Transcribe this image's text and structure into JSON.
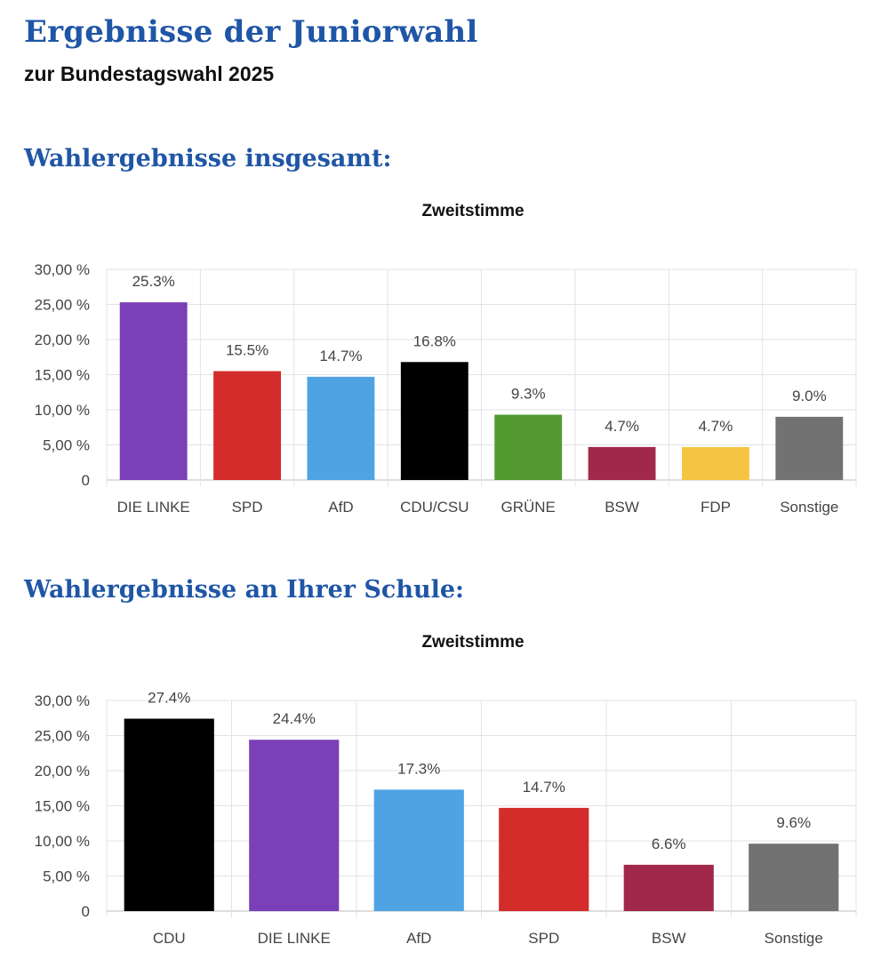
{
  "header": {
    "title": "Ergebnisse der Juniorwahl",
    "subtitle": "zur Bundestagswahl 2025"
  },
  "sections": [
    {
      "heading": "Wahlergebnisse insgesamt:"
    },
    {
      "heading": "Wahlergebnisse an Ihrer Schule:"
    }
  ],
  "chart_data": [
    {
      "type": "bar",
      "title": "Zweitstimme",
      "xlabel": "",
      "ylabel": "",
      "ylim": [
        0,
        30
      ],
      "yticks": [
        0,
        5,
        10,
        15,
        20,
        25,
        30
      ],
      "ytick_labels": [
        "0",
        "5,00 %",
        "10,00 %",
        "15,00 %",
        "20,00 %",
        "25,00 %",
        "30,00 %"
      ],
      "grid": true,
      "legend": "none",
      "categories": [
        "DIE LINKE",
        "SPD",
        "AfD",
        "CDU/CSU",
        "GRÜNE",
        "BSW",
        "FDP",
        "Sonstige"
      ],
      "values": [
        25.3,
        15.5,
        14.7,
        16.8,
        9.3,
        4.7,
        4.7,
        9.0
      ],
      "data_labels": [
        "25.3%",
        "15.5%",
        "14.7%",
        "16.8%",
        "9.3%",
        "4.7%",
        "4.7%",
        "9.0%"
      ],
      "colors": [
        "#7b3fb8",
        "#d42b2b",
        "#4fa3e3",
        "#000000",
        "#529a2f",
        "#a1284a",
        "#f5c542",
        "#727272"
      ]
    },
    {
      "type": "bar",
      "title": "Zweitstimme",
      "xlabel": "",
      "ylabel": "",
      "ylim": [
        0,
        30
      ],
      "yticks": [
        0,
        5,
        10,
        15,
        20,
        25,
        30
      ],
      "ytick_labels": [
        "0",
        "5,00 %",
        "10,00 %",
        "15,00 %",
        "20,00 %",
        "25,00 %",
        "30,00 %"
      ],
      "grid": true,
      "legend": "none",
      "categories": [
        "CDU",
        "DIE LINKE",
        "AfD",
        "SPD",
        "BSW",
        "Sonstige"
      ],
      "values": [
        27.4,
        24.4,
        17.3,
        14.7,
        6.6,
        9.6
      ],
      "data_labels": [
        "27.4%",
        "24.4%",
        "17.3%",
        "14.7%",
        "6.6%",
        "9.6%"
      ],
      "colors": [
        "#000000",
        "#7b3fb8",
        "#4fa3e3",
        "#d42b2b",
        "#a1284a",
        "#727272"
      ]
    }
  ]
}
